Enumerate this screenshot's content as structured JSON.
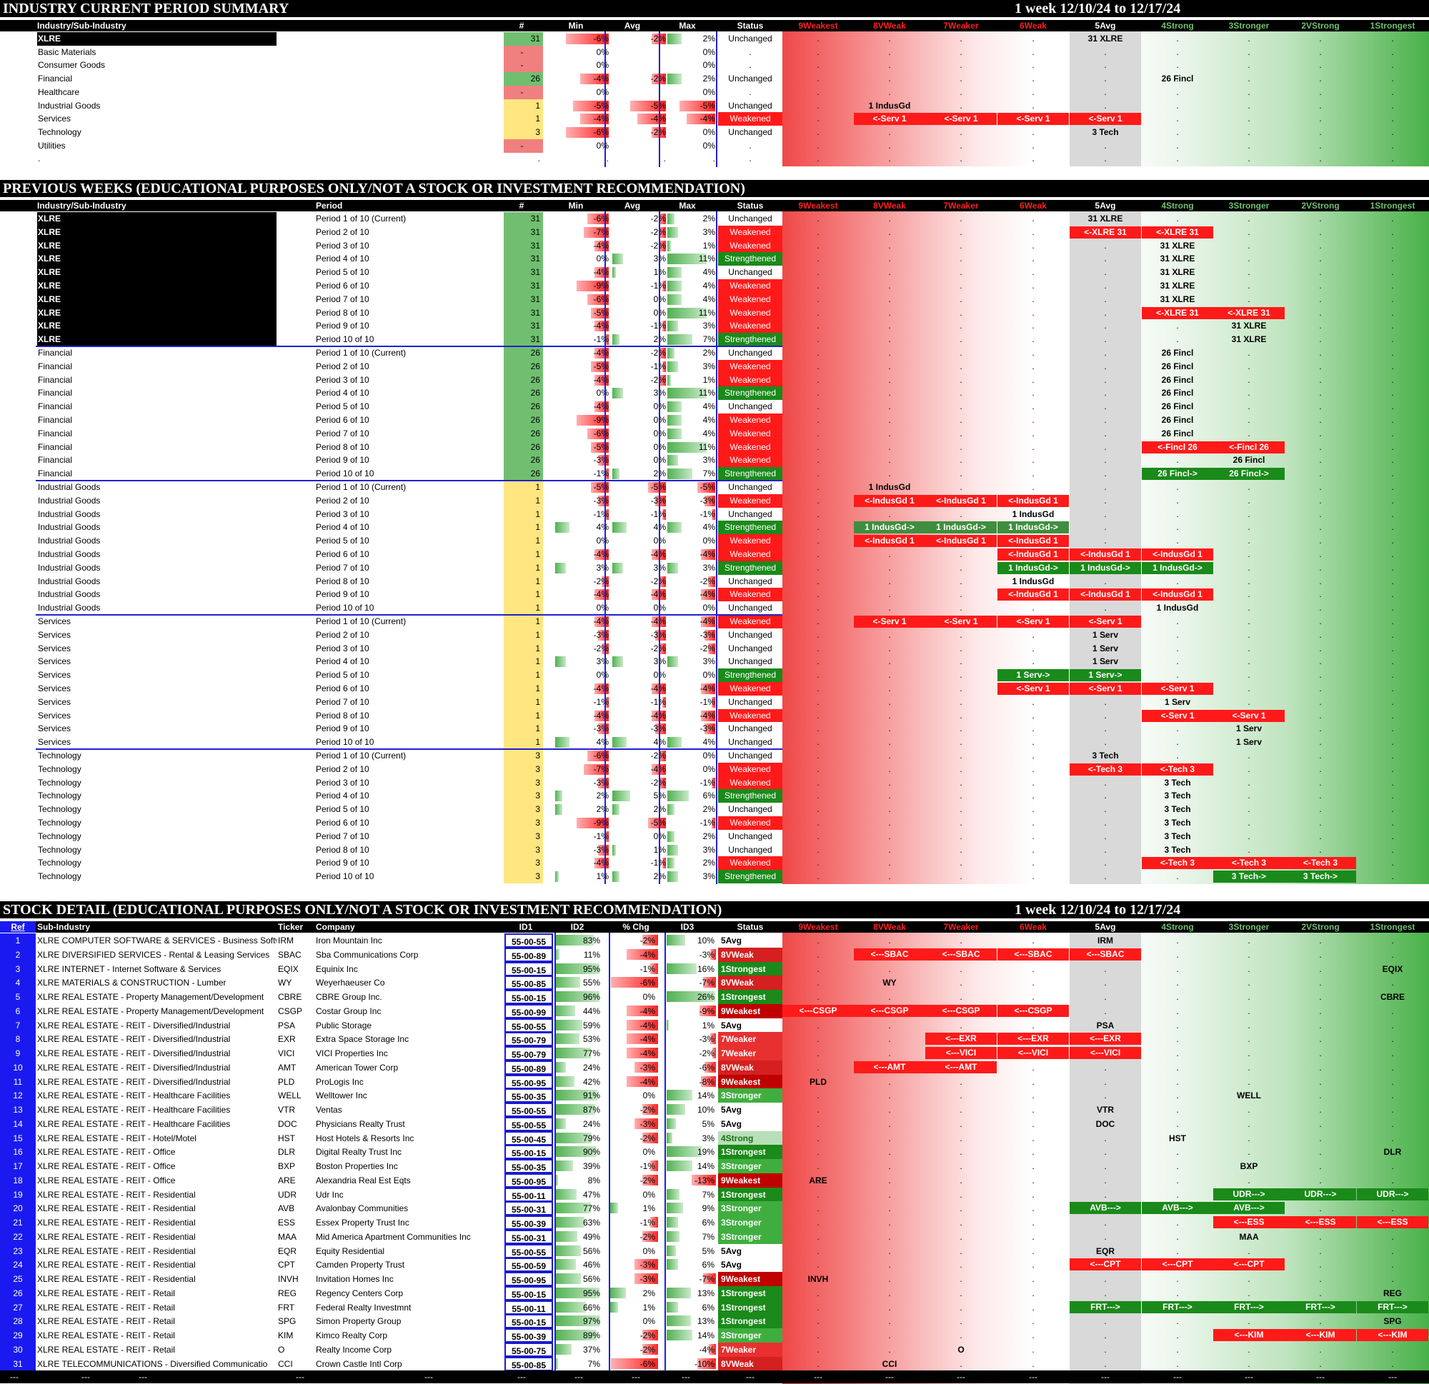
{
  "summary": {
    "title": "INDUSTRY CURRENT PERIOD SUMMARY",
    "period": "1 week 12/10/24 to 12/17/24",
    "headers": [
      "Industry/Sub-Industry",
      "#",
      "Min",
      "Avg",
      "Max",
      "Status"
    ],
    "levels": [
      "9Weakest",
      "8VWeak",
      "7Weaker",
      "6Weak",
      "5Avg",
      "4Strong",
      "3Stronger",
      "2VStrong",
      "1Strongest"
    ],
    "rows": [
      {
        "name": "XLRE",
        "num": "31",
        "min": "-6%",
        "avg": "-2%",
        "max": "2%",
        "status": "Unchanged",
        "label": "31 XLRE"
      },
      {
        "name": "Basic Materials",
        "num": "-",
        "min": "0%",
        "avg": "",
        "max": "0%",
        "status": ".",
        "label": ""
      },
      {
        "name": "Consumer Goods",
        "num": "-",
        "min": "0%",
        "avg": "",
        "max": "0%",
        "status": ".",
        "label": ""
      },
      {
        "name": "Financial",
        "num": "26",
        "min": "-4%",
        "avg": "-2%",
        "max": "2%",
        "status": "Unchanged",
        "label": "26 Fincl"
      },
      {
        "name": "Healthcare",
        "num": "-",
        "min": "0%",
        "avg": "",
        "max": "0%",
        "status": ".",
        "label": ""
      },
      {
        "name": "Industrial Goods",
        "num": "1",
        "min": "-5%",
        "avg": "-5%",
        "max": "-5%",
        "status": "Unchanged",
        "label": "1 IndusGd"
      },
      {
        "name": "Services",
        "num": "1",
        "min": "-4%",
        "avg": "-4%",
        "max": "-4%",
        "status": "Weakened",
        "label": "<-Serv 1"
      },
      {
        "name": "Technology",
        "num": "3",
        "min": "-6%",
        "avg": "-2%",
        "max": "0%",
        "status": "Unchanged",
        "label": "3 Tech"
      },
      {
        "name": "Utilities",
        "num": "-",
        "min": "0%",
        "avg": "",
        "max": "0%",
        "status": ".",
        "label": ""
      },
      {
        "name": ".",
        "num": ".",
        "min": ".",
        "avg": ".",
        "max": ".",
        "status": ".",
        "label": ""
      }
    ]
  },
  "previous": {
    "title": "PREVIOUS WEEKS (EDUCATIONAL PURPOSES ONLY/NOT A STOCK OR INVESTMENT RECOMMENDATION)",
    "headers": [
      "Industry/Sub-Industry",
      "Period",
      "#",
      "Min",
      "Avg",
      "Max",
      "Status"
    ],
    "groups": [
      {
        "name": "XLRE",
        "num": "31",
        "rows": [
          [
            "Period 1 of 10 (Current)",
            "-6%",
            "-2%",
            "2%",
            "Unchanged"
          ],
          [
            "Period 2 of 10",
            "-7%",
            "-2%",
            "3%",
            "Weakened"
          ],
          [
            "Period 3 of 10",
            "-4%",
            "-2%",
            "1%",
            "Weakened"
          ],
          [
            "Period 4 of 10",
            "0%",
            "3%",
            "11%",
            "Strengthened"
          ],
          [
            "Period 5 of 10",
            "-4%",
            "1%",
            "4%",
            "Unchanged"
          ],
          [
            "Period 6 of 10",
            "-9%",
            "-1%",
            "4%",
            "Weakened"
          ],
          [
            "Period 7 of 10",
            "-6%",
            "0%",
            "4%",
            "Weakened"
          ],
          [
            "Period 8 of 10",
            "-5%",
            "0%",
            "11%",
            "Weakened"
          ],
          [
            "Period 9 of 10",
            "-4%",
            "-1%",
            "3%",
            "Weakened"
          ],
          [
            "Period 10 of 10",
            "-1%",
            "2%",
            "7%",
            "Strengthened"
          ]
        ]
      },
      {
        "name": "Financial",
        "num": "26",
        "rows": [
          [
            "Period 1 of 10 (Current)",
            "-4%",
            "-2%",
            "2%",
            "Unchanged"
          ],
          [
            "Period 2 of 10",
            "-5%",
            "-1%",
            "3%",
            "Weakened"
          ],
          [
            "Period 3 of 10",
            "-4%",
            "-2%",
            "1%",
            "Weakened"
          ],
          [
            "Period 4 of 10",
            "0%",
            "3%",
            "11%",
            "Strengthened"
          ],
          [
            "Period 5 of 10",
            "-4%",
            "0%",
            "4%",
            "Unchanged"
          ],
          [
            "Period 6 of 10",
            "-9%",
            "0%",
            "4%",
            "Weakened"
          ],
          [
            "Period 7 of 10",
            "-6%",
            "0%",
            "4%",
            "Weakened"
          ],
          [
            "Period 8 of 10",
            "-5%",
            "0%",
            "11%",
            "Weakened"
          ],
          [
            "Period 9 of 10",
            "-3%",
            "0%",
            "3%",
            "Weakened"
          ],
          [
            "Period 10 of 10",
            "-1%",
            "2%",
            "7%",
            "Strengthened"
          ]
        ]
      },
      {
        "name": "Industrial Goods",
        "num": "1",
        "rows": [
          [
            "Period 1 of 10 (Current)",
            "-5%",
            "-5%",
            "-5%",
            "Unchanged"
          ],
          [
            "Period 2 of 10",
            "-3%",
            "-3%",
            "-3%",
            "Weakened"
          ],
          [
            "Period 3 of 10",
            "-1%",
            "-1%",
            "-1%",
            "Unchanged"
          ],
          [
            "Period 4 of 10",
            "4%",
            "4%",
            "4%",
            "Strengthened"
          ],
          [
            "Period 5 of 10",
            "0%",
            "0%",
            "0%",
            "Weakened"
          ],
          [
            "Period 6 of 10",
            "-4%",
            "-4%",
            "-4%",
            "Weakened"
          ],
          [
            "Period 7 of 10",
            "3%",
            "3%",
            "3%",
            "Strengthened"
          ],
          [
            "Period 8 of 10",
            "-2%",
            "-2%",
            "-2%",
            "Unchanged"
          ],
          [
            "Period 9 of 10",
            "-4%",
            "-4%",
            "-4%",
            "Weakened"
          ],
          [
            "Period 10 of 10",
            "0%",
            "0%",
            "0%",
            "Unchanged"
          ]
        ]
      },
      {
        "name": "Services",
        "num": "1",
        "rows": [
          [
            "Period 1 of 10 (Current)",
            "-4%",
            "-4%",
            "-4%",
            "Weakened"
          ],
          [
            "Period 2 of 10",
            "-3%",
            "-3%",
            "-3%",
            "Unchanged"
          ],
          [
            "Period 3 of 10",
            "-2%",
            "-2%",
            "-2%",
            "Unchanged"
          ],
          [
            "Period 4 of 10",
            "3%",
            "3%",
            "3%",
            "Unchanged"
          ],
          [
            "Period 5 of 10",
            "0%",
            "0%",
            "0%",
            "Strengthened"
          ],
          [
            "Period 6 of 10",
            "-4%",
            "-4%",
            "-4%",
            "Weakened"
          ],
          [
            "Period 7 of 10",
            "-1%",
            "-1%",
            "-1%",
            "Unchanged"
          ],
          [
            "Period 8 of 10",
            "-4%",
            "-4%",
            "-4%",
            "Weakened"
          ],
          [
            "Period 9 of 10",
            "-3%",
            "-3%",
            "-3%",
            "Unchanged"
          ],
          [
            "Period 10 of 10",
            "4%",
            "4%",
            "4%",
            "Unchanged"
          ]
        ]
      },
      {
        "name": "Technology",
        "num": "3",
        "rows": [
          [
            "Period 1 of 10 (Current)",
            "-6%",
            "-2%",
            "0%",
            "Unchanged"
          ],
          [
            "Period 2 of 10",
            "-7%",
            "-4%",
            "0%",
            "Weakened"
          ],
          [
            "Period 3 of 10",
            "-3%",
            "-2%",
            "-1%",
            "Weakened"
          ],
          [
            "Period 4 of 10",
            "2%",
            "5%",
            "6%",
            "Strengthened"
          ],
          [
            "Period 5 of 10",
            "2%",
            "2%",
            "2%",
            "Unchanged"
          ],
          [
            "Period 6 of 10",
            "-9%",
            "-5%",
            "-1%",
            "Weakened"
          ],
          [
            "Period 7 of 10",
            "-1%",
            "0%",
            "2%",
            "Unchanged"
          ],
          [
            "Period 8 of 10",
            "-3%",
            "1%",
            "3%",
            "Unchanged"
          ],
          [
            "Period 9 of 10",
            "-4%",
            "-1%",
            "2%",
            "Weakened"
          ],
          [
            "Period 10 of 10",
            "1%",
            "2%",
            "3%",
            "Strengthened"
          ]
        ]
      }
    ]
  },
  "stocks": {
    "title": "STOCK DETAIL (EDUCATIONAL PURPOSES ONLY/NOT A STOCK OR INVESTMENT RECOMMENDATION)",
    "period": "1 week 12/10/24 to 12/17/24",
    "headers": [
      "Ref",
      "Sub-Industry",
      "Ticker",
      "Company",
      "ID1",
      "ID2",
      "% Chg",
      "ID3",
      "Status"
    ],
    "rows": [
      [
        "1",
        "XLRE COMPUTER SOFTWARE & SERVICES - Business Softw",
        "IRM",
        "Iron Mountain Inc",
        "55-00-55",
        "83%",
        "-2%",
        "10%",
        "5Avg"
      ],
      [
        "2",
        "XLRE DIVERSIFIED SERVICES - Rental & Leasing Services",
        "SBAC",
        "Sba Communications Corp",
        "55-00-89",
        "11%",
        "-4%",
        "-3%",
        "8VWeak"
      ],
      [
        "3",
        "XLRE INTERNET - Internet Software & Services",
        "EQIX",
        "Equinix Inc",
        "55-00-15",
        "95%",
        "-1%",
        "16%",
        "1Strongest"
      ],
      [
        "4",
        "XLRE MATERIALS & CONSTRUCTION - Lumber",
        "WY",
        "Weyerhaeuser Co",
        "55-00-85",
        "55%",
        "-6%",
        "-7%",
        "8VWeak"
      ],
      [
        "5",
        "XLRE REAL ESTATE - Property Management/Development",
        "CBRE",
        "CBRE Group Inc.",
        "55-00-15",
        "96%",
        "0%",
        "26%",
        "1Strongest"
      ],
      [
        "6",
        "XLRE REAL ESTATE - Property Management/Development",
        "CSGP",
        "Costar Group Inc",
        "55-00-99",
        "44%",
        "-4%",
        "-9%",
        "9Weakest"
      ],
      [
        "7",
        "XLRE REAL ESTATE - REIT - Diversified/Industrial",
        "PSA",
        "Public Storage",
        "55-00-55",
        "59%",
        "-4%",
        "1%",
        "5Avg"
      ],
      [
        "8",
        "XLRE REAL ESTATE - REIT - Diversified/Industrial",
        "EXR",
        "Extra Space Storage Inc",
        "55-00-79",
        "53%",
        "-4%",
        "-3%",
        "7Weaker"
      ],
      [
        "9",
        "XLRE REAL ESTATE - REIT - Diversified/Industrial",
        "VICI",
        "VICI Properties Inc",
        "55-00-79",
        "77%",
        "-4%",
        "-2%",
        "7Weaker"
      ],
      [
        "10",
        "XLRE REAL ESTATE - REIT - Diversified/Industrial",
        "AMT",
        "American Tower Corp",
        "55-00-89",
        "24%",
        "-3%",
        "-6%",
        "8VWeak"
      ],
      [
        "11",
        "XLRE REAL ESTATE - REIT - Diversified/Industrial",
        "PLD",
        "ProLogis Inc",
        "55-00-95",
        "42%",
        "-4%",
        "-8%",
        "9Weakest"
      ],
      [
        "12",
        "XLRE REAL ESTATE - REIT - Healthcare Facilities",
        "WELL",
        "Welltower Inc",
        "55-00-35",
        "91%",
        "0%",
        "14%",
        "3Stronger"
      ],
      [
        "13",
        "XLRE REAL ESTATE - REIT - Healthcare Facilities",
        "VTR",
        "Ventas",
        "55-00-55",
        "87%",
        "-2%",
        "10%",
        "5Avg"
      ],
      [
        "14",
        "XLRE REAL ESTATE - REIT - Healthcare Facilities",
        "DOC",
        "Physicians Realty Trust",
        "55-00-55",
        "24%",
        "-3%",
        "5%",
        "5Avg"
      ],
      [
        "15",
        "XLRE REAL ESTATE - REIT - Hotel/Motel",
        "HST",
        "Host Hotels & Resorts Inc",
        "55-00-45",
        "79%",
        "-2%",
        "3%",
        "4Strong"
      ],
      [
        "16",
        "XLRE REAL ESTATE - REIT - Office",
        "DLR",
        "Digital Realty Trust Inc",
        "55-00-15",
        "90%",
        "0%",
        "19%",
        "1Strongest"
      ],
      [
        "17",
        "XLRE REAL ESTATE - REIT - Office",
        "BXP",
        "Boston Properties Inc",
        "55-00-35",
        "39%",
        "-1%",
        "14%",
        "3Stronger"
      ],
      [
        "18",
        "XLRE REAL ESTATE - REIT - Office",
        "ARE",
        "Alexandria Real Est Eqts",
        "55-00-95",
        "8%",
        "-2%",
        "-13%",
        "9Weakest"
      ],
      [
        "19",
        "XLRE REAL ESTATE - REIT - Residential",
        "UDR",
        "Udr Inc",
        "55-00-11",
        "47%",
        "0%",
        "7%",
        "1Strongest"
      ],
      [
        "20",
        "XLRE REAL ESTATE - REIT - Residential",
        "AVB",
        "Avalonbay Communities",
        "55-00-31",
        "77%",
        "1%",
        "9%",
        "3Stronger"
      ],
      [
        "21",
        "XLRE REAL ESTATE - REIT - Residential",
        "ESS",
        "Essex Property Trust Inc",
        "55-00-39",
        "63%",
        "-1%",
        "6%",
        "3Stronger"
      ],
      [
        "22",
        "XLRE REAL ESTATE - REIT - Residential",
        "MAA",
        "Mid America Apartment Communities Inc",
        "55-00-31",
        "49%",
        "-2%",
        "7%",
        "3Stronger"
      ],
      [
        "23",
        "XLRE REAL ESTATE - REIT - Residential",
        "EQR",
        "Equity Residential",
        "55-00-55",
        "56%",
        "0%",
        "5%",
        "5Avg"
      ],
      [
        "24",
        "XLRE REAL ESTATE - REIT - Residential",
        "CPT",
        "Camden Property Trust",
        "55-00-59",
        "46%",
        "-3%",
        "6%",
        "5Avg"
      ],
      [
        "25",
        "XLRE REAL ESTATE - REIT - Residential",
        "INVH",
        "Invitation Homes Inc",
        "55-00-95",
        "56%",
        "-3%",
        "-7%",
        "9Weakest"
      ],
      [
        "26",
        "XLRE REAL ESTATE - REIT - Retail",
        "REG",
        "Regency Centers Corp",
        "55-00-15",
        "95%",
        "2%",
        "13%",
        "1Strongest"
      ],
      [
        "27",
        "XLRE REAL ESTATE - REIT - Retail",
        "FRT",
        "Federal Realty Investmnt",
        "55-00-11",
        "66%",
        "1%",
        "6%",
        "1Strongest"
      ],
      [
        "28",
        "XLRE REAL ESTATE - REIT - Retail",
        "SPG",
        "Simon Property Group",
        "55-00-15",
        "97%",
        "0%",
        "13%",
        "1Strongest"
      ],
      [
        "29",
        "XLRE REAL ESTATE - REIT - Retail",
        "KIM",
        "Kimco Realty Corp",
        "55-00-39",
        "89%",
        "-2%",
        "14%",
        "3Stronger"
      ],
      [
        "30",
        "XLRE REAL ESTATE - REIT - Retail",
        "O",
        "Realty Income Corp",
        "55-00-75",
        "37%",
        "-2%",
        "-4%",
        "7Weaker"
      ],
      [
        "31",
        "XLRE TELECOMMUNICATIONS - Diversified Communicatio",
        "CCI",
        "Crown Castle Intl Corp",
        "55-00-85",
        "7%",
        "-6%",
        "-10%",
        "8VWeak"
      ]
    ],
    "footer": "---"
  },
  "colors": {
    "weakRed": "#ff1a1a",
    "strongGreen": "#1a8a1a",
    "refBlue": "#1a1af0",
    "gridBlue": "#2020d0"
  }
}
